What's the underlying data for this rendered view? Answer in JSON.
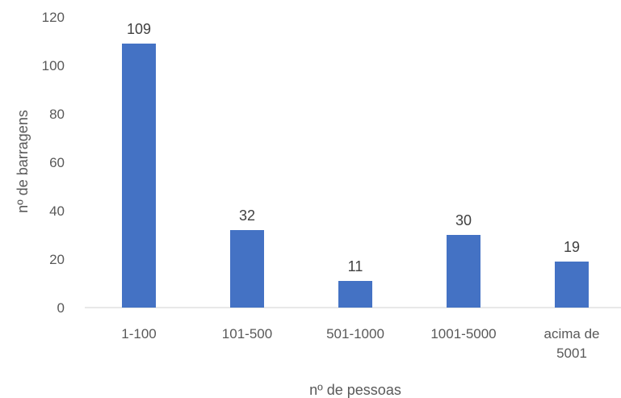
{
  "chart_data": {
    "type": "bar",
    "categories": [
      [
        "1-100"
      ],
      [
        "101-500"
      ],
      [
        "501-1000"
      ],
      [
        "1001-5000"
      ],
      [
        "acima de",
        "5001"
      ]
    ],
    "values": [
      109,
      32,
      11,
      30,
      19
    ],
    "xlabel": "nº de pessoas",
    "ylabel": "nº de barragens",
    "ylim": [
      0,
      120
    ],
    "yticks": [
      0,
      20,
      40,
      60,
      80,
      100,
      120
    ],
    "grid": false,
    "legend": "none",
    "bar_color": "#4472C4",
    "axis_color": "#D9D9D9"
  }
}
